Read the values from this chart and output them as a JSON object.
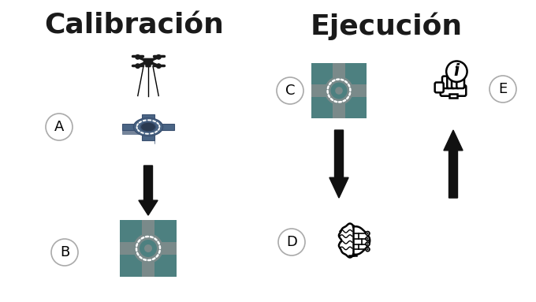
{
  "title_left": "Calibración",
  "title_right": "Ejecución",
  "title_fontsize": 26,
  "title_color": "#1a1a1a",
  "bg_color": "#ffffff",
  "label_A": "A",
  "label_B": "B",
  "label_C": "C",
  "label_D": "D",
  "label_E": "E",
  "teal_color": "#4d8080",
  "road_gray": "#7a8a8a",
  "arrow_color": "#111111",
  "circle_edge": "#aaaaaa",
  "label_fontsize": 13,
  "drone_color": "#1a1a1a",
  "iso_dark": "#3a5070",
  "iso_mid": "#4a6585",
  "iso_light": "#5a7a90"
}
